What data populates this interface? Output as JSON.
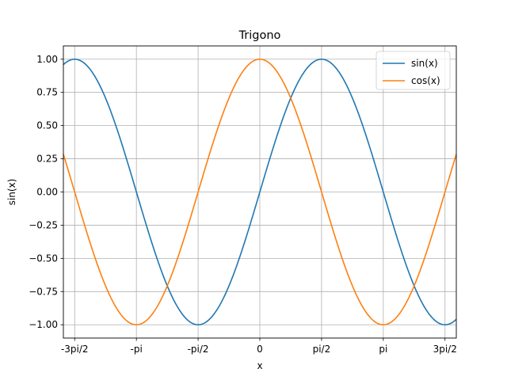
{
  "chart_data": {
    "type": "line",
    "title": "Trigono",
    "xlabel": "x",
    "ylabel": "sin(x)",
    "xlim": [
      -5.0,
      5.0
    ],
    "ylim": [
      -1.1,
      1.1
    ],
    "grid": true,
    "legend_position": "top-right",
    "x_ticks": [
      {
        "value": -4.712389,
        "label": "-3pi/2"
      },
      {
        "value": -3.141593,
        "label": "-pi"
      },
      {
        "value": -1.570796,
        "label": "-pi/2"
      },
      {
        "value": 0,
        "label": "0"
      },
      {
        "value": 1.570796,
        "label": "pi/2"
      },
      {
        "value": 3.141593,
        "label": "pi"
      },
      {
        "value": 4.712389,
        "label": "3pi/2"
      }
    ],
    "y_ticks": [
      {
        "value": 1.0,
        "label": "1.00"
      },
      {
        "value": 0.75,
        "label": "0.75"
      },
      {
        "value": 0.5,
        "label": "0.50"
      },
      {
        "value": 0.25,
        "label": "0.25"
      },
      {
        "value": 0.0,
        "label": "0.00"
      },
      {
        "value": -0.25,
        "label": "−0.25"
      },
      {
        "value": -0.5,
        "label": "−0.50"
      },
      {
        "value": -0.75,
        "label": "−0.75"
      },
      {
        "value": -1.0,
        "label": "−1.00"
      }
    ],
    "x": [
      -5.0,
      -4.5,
      -4.0,
      -3.5,
      -3.0,
      -2.5,
      -2.0,
      -1.5,
      -1.0,
      -0.5,
      0.0,
      0.5,
      1.0,
      1.5,
      2.0,
      2.5,
      3.0,
      3.5,
      4.0,
      4.5,
      5.0
    ],
    "series": [
      {
        "name": "sin(x)",
        "color": "#1f77b4",
        "values": [
          0.959,
          0.978,
          0.757,
          0.351,
          -0.141,
          -0.598,
          -0.909,
          -0.997,
          -0.841,
          -0.479,
          0.0,
          0.479,
          0.841,
          0.997,
          0.909,
          0.598,
          0.141,
          -0.351,
          -0.757,
          -0.978,
          -0.959
        ]
      },
      {
        "name": "cos(x)",
        "color": "#ff7f0e",
        "values": [
          0.284,
          -0.211,
          -0.654,
          -0.936,
          -0.99,
          -0.801,
          -0.416,
          0.071,
          0.54,
          0.878,
          1.0,
          0.878,
          0.54,
          0.071,
          -0.416,
          -0.801,
          -0.99,
          -0.936,
          -0.654,
          -0.211,
          0.284
        ]
      }
    ]
  }
}
